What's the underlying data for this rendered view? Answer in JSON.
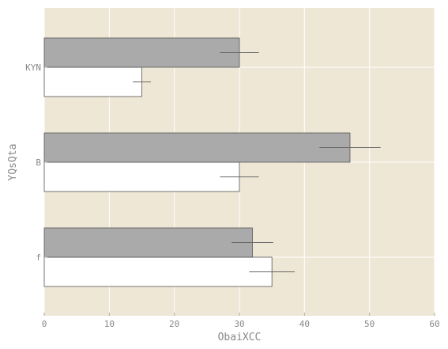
{
  "chart_data": {
    "type": "bar",
    "orientation": "horizontal",
    "categories": [
      "f",
      "B",
      "KYN"
    ],
    "series": [
      {
        "values": [
          35,
          30,
          15
        ],
        "errors": [
          3.5,
          3.0,
          1.4
        ],
        "color": "#ffffff"
      },
      {
        "values": [
          32,
          47,
          30
        ],
        "errors": [
          3.2,
          4.7,
          3.0
        ],
        "color": "#aaaaaa"
      }
    ],
    "xlabel": "ObaiXCC",
    "ylabel": "YQsQta",
    "xlim": [
      0,
      60
    ],
    "xticks": [
      "0",
      "10",
      "20",
      "30",
      "40",
      "50",
      "60"
    ],
    "grid": true,
    "background": "#efe7d6",
    "grid_color": "#ffffff"
  }
}
